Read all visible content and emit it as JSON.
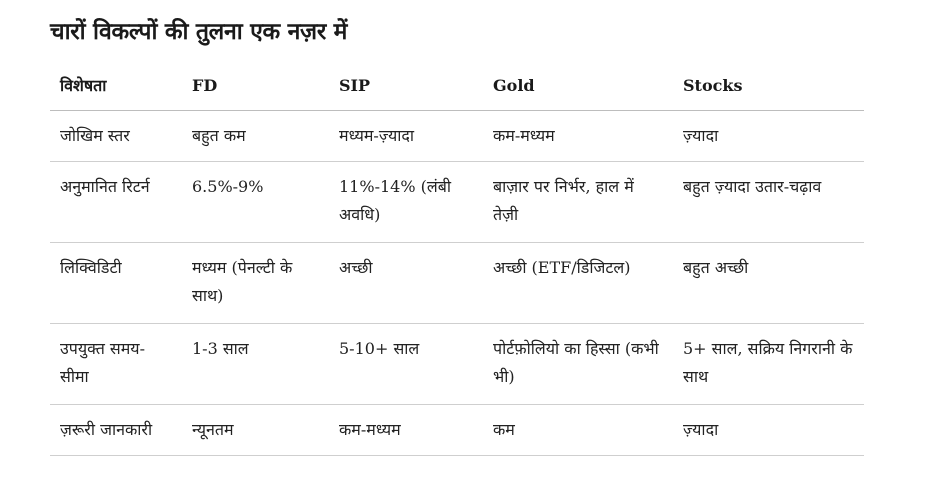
{
  "title": "चारों विकल्पों की तुलना एक नज़र में",
  "table": {
    "headers": [
      "विशेषता",
      "FD",
      "SIP",
      "Gold",
      "Stocks"
    ],
    "rows": [
      [
        "जोखिम स्तर",
        "बहुत कम",
        "मध्यम-ज़्यादा",
        "कम-मध्यम",
        "ज़्यादा"
      ],
      [
        "अनुमानित रिटर्न",
        "6.5%-9%",
        "11%-14% (लंबी अवधि)",
        "बाज़ार पर निर्भर, हाल में तेज़ी",
        "बहुत ज़्यादा उतार-चढ़ाव"
      ],
      [
        "लिक्विडिटी",
        "मध्यम (पेनल्टी के साथ)",
        "अच्छी",
        "अच्छी (ETF/डिजिटल)",
        "बहुत अच्छी"
      ],
      [
        "उपयुक्त समय-सीमा",
        "1-3 साल",
        "5-10+ साल",
        "पोर्टफ़ोलियो का हिस्सा (कभी भी)",
        "5+ साल, सक्रिय निगरानी के साथ"
      ],
      [
        "ज़रूरी जानकारी",
        "न्यूनतम",
        "कम-मध्यम",
        "कम",
        "ज़्यादा"
      ]
    ]
  }
}
